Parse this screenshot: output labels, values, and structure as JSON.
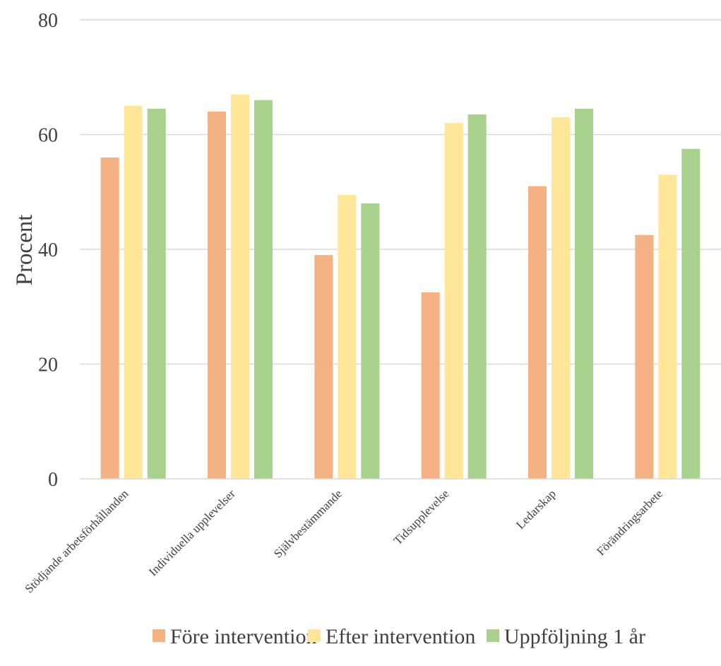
{
  "chart_data": {
    "type": "bar",
    "ylabel": "Procent",
    "ylim": [
      0,
      80
    ],
    "yticks": [
      0,
      20,
      40,
      60,
      80
    ],
    "grid": true,
    "legend_position": "bottom",
    "categories": [
      "Stödjande arbetsförhållanden",
      "Individuella upplevelser",
      "Självbestämmande",
      "Tidsupplevelse",
      "Ledarskap",
      "Förändringsarbete"
    ],
    "series": [
      {
        "name": "Före intervention",
        "color": "#f4b183",
        "values": [
          56,
          64,
          39,
          32.5,
          51,
          42.5
        ]
      },
      {
        "name": "Efter intervention",
        "color": "#ffe699",
        "values": [
          65,
          67,
          49.5,
          62,
          63,
          53
        ]
      },
      {
        "name": "Uppföljning 1 år",
        "color": "#a9d18e",
        "values": [
          64.5,
          66,
          48,
          63.5,
          64.5,
          57.5
        ]
      }
    ]
  }
}
